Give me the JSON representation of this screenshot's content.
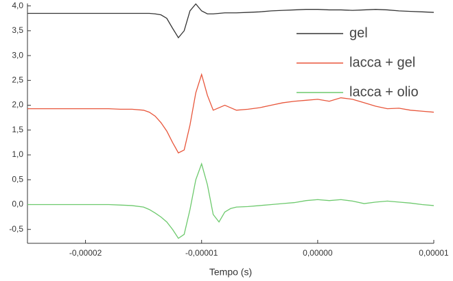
{
  "chart_data": {
    "type": "line",
    "x_label": "Tempo (s)",
    "x": [
      -2.5e-05,
      -2.4e-05,
      -2.3e-05,
      -2.2e-05,
      -2.1e-05,
      -2e-05,
      -1.9e-05,
      -1.8e-05,
      -1.7e-05,
      -1.6e-05,
      -1.5e-05,
      -1.45e-05,
      -1.4e-05,
      -1.35e-05,
      -1.3e-05,
      -1.25e-05,
      -1.2e-05,
      -1.15e-05,
      -1.1e-05,
      -1.05e-05,
      -1e-05,
      -9.5e-06,
      -9e-06,
      -8.5e-06,
      -8e-06,
      -7.5e-06,
      -7e-06,
      -6e-06,
      -5e-06,
      -4e-06,
      -3e-06,
      -2e-06,
      -1e-06,
      0,
      1e-06,
      2e-06,
      3e-06,
      4e-06,
      5e-06,
      6e-06,
      7e-06,
      8e-06,
      9e-06,
      1e-05
    ],
    "series": [
      {
        "name": "gel",
        "color": "#333333",
        "values": [
          3.85,
          3.85,
          3.85,
          3.85,
          3.85,
          3.85,
          3.85,
          3.85,
          3.85,
          3.85,
          3.85,
          3.85,
          3.84,
          3.82,
          3.75,
          3.55,
          3.36,
          3.5,
          3.9,
          4.04,
          3.9,
          3.84,
          3.84,
          3.85,
          3.86,
          3.86,
          3.86,
          3.87,
          3.88,
          3.9,
          3.91,
          3.92,
          3.93,
          3.93,
          3.92,
          3.92,
          3.91,
          3.92,
          3.93,
          3.92,
          3.9,
          3.89,
          3.88,
          3.87
        ]
      },
      {
        "name": "lacca + gel",
        "color": "#e8553a",
        "values": [
          1.93,
          1.93,
          1.93,
          1.93,
          1.93,
          1.93,
          1.93,
          1.93,
          1.92,
          1.92,
          1.9,
          1.86,
          1.78,
          1.65,
          1.48,
          1.25,
          1.04,
          1.1,
          1.6,
          2.25,
          2.62,
          2.2,
          1.9,
          1.95,
          2.0,
          1.95,
          1.9,
          1.92,
          1.95,
          2.0,
          2.05,
          2.08,
          2.1,
          2.12,
          2.08,
          2.15,
          2.12,
          2.05,
          1.98,
          1.93,
          1.94,
          1.9,
          1.88,
          1.86
        ]
      },
      {
        "name": "lacca + olio",
        "color": "#6cc96c",
        "values": [
          0,
          0,
          0,
          0,
          0,
          0,
          0,
          0,
          -0.01,
          -0.02,
          -0.05,
          -0.1,
          -0.17,
          -0.25,
          -0.35,
          -0.5,
          -0.68,
          -0.6,
          -0.1,
          0.5,
          0.82,
          0.4,
          -0.2,
          -0.35,
          -0.15,
          -0.08,
          -0.05,
          -0.04,
          -0.02,
          0,
          0.02,
          0.04,
          0.08,
          0.1,
          0.08,
          0.1,
          0.07,
          0.02,
          0.05,
          0.07,
          0.05,
          0.03,
          0,
          -0.02
        ]
      }
    ],
    "xlim": [
      -2.5e-05,
      1e-05
    ],
    "xticks": [
      {
        "value": -2e-05,
        "label": "-0,00002"
      },
      {
        "value": -1e-05,
        "label": "-0,00001"
      },
      {
        "value": 0,
        "label": "0,00000"
      },
      {
        "value": 1e-05,
        "label": "0,00001"
      }
    ],
    "ylim": [
      -0.78,
      4.05
    ],
    "yticks": [
      {
        "value": -0.5,
        "label": "-0,5"
      },
      {
        "value": 0,
        "label": "0,0"
      },
      {
        "value": 0.5,
        "label": "0,5"
      },
      {
        "value": 1.0,
        "label": "1,0"
      },
      {
        "value": 1.5,
        "label": "1,5"
      },
      {
        "value": 2.0,
        "label": "2,0"
      },
      {
        "value": 2.5,
        "label": "2,5"
      },
      {
        "value": 3.0,
        "label": "3,0"
      },
      {
        "value": 3.5,
        "label": "3,5"
      },
      {
        "value": 4.0,
        "label": "4,0"
      }
    ],
    "legend": "upper right"
  }
}
